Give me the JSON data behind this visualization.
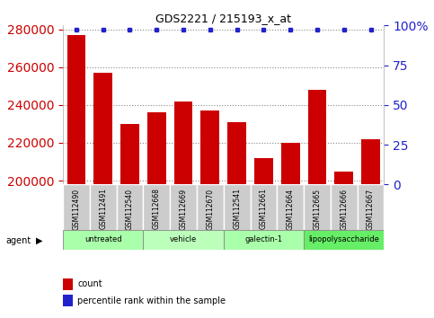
{
  "title": "GDS2221 / 215193_x_at",
  "samples": [
    "GSM112490",
    "GSM112491",
    "GSM112540",
    "GSM112668",
    "GSM112669",
    "GSM112670",
    "GSM112541",
    "GSM112661",
    "GSM112664",
    "GSM112665",
    "GSM112666",
    "GSM112667"
  ],
  "counts": [
    277000,
    257000,
    230000,
    236000,
    242000,
    237000,
    231000,
    212000,
    220000,
    248000,
    205000,
    222000
  ],
  "percentiles": [
    99,
    99,
    99,
    99,
    99,
    99,
    99,
    99,
    99,
    99,
    99,
    99
  ],
  "ylim_left": [
    198000,
    282000
  ],
  "ylim_right": [
    0,
    100
  ],
  "yticks_left": [
    200000,
    220000,
    240000,
    260000,
    280000
  ],
  "yticks_right": [
    0,
    25,
    50,
    75,
    100
  ],
  "bar_color": "#cc0000",
  "percentile_color": "#2222cc",
  "groups": [
    {
      "label": "untreated",
      "start": 0,
      "end": 3,
      "color": "#aaffaa"
    },
    {
      "label": "vehicle",
      "start": 3,
      "end": 6,
      "color": "#bbffbb"
    },
    {
      "label": "galectin-1",
      "start": 6,
      "end": 9,
      "color": "#aaffaa"
    },
    {
      "label": "lipopolysaccharide",
      "start": 9,
      "end": 12,
      "color": "#66ee66"
    }
  ],
  "agent_label": "agent",
  "legend_count_label": "count",
  "legend_percentile_label": "percentile rank within the sample",
  "bg_plot": "#ffffff",
  "bg_xtick": "#cccccc",
  "grid_color": "#888888"
}
